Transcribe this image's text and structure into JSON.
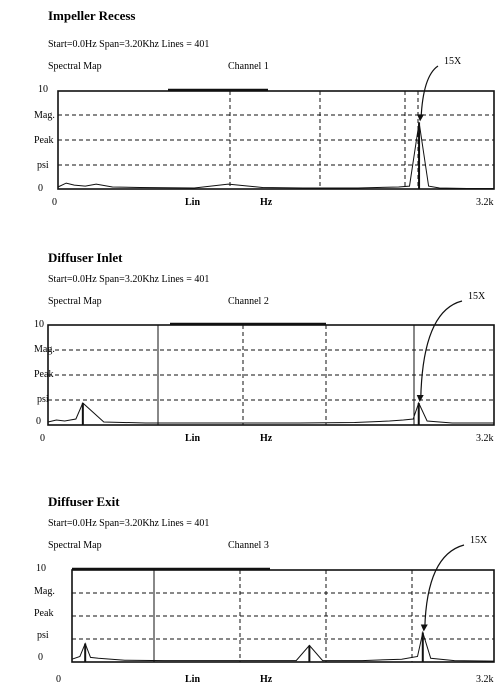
{
  "panels": [
    {
      "title": "Impeller Recess",
      "params": "Start=0.0Hz Span=3.20Khz Lines = 401",
      "map_label": "Spectral Map",
      "channel": "Channel 1",
      "y_top": "10",
      "y_zero": "0",
      "ylabel": [
        "Mag.",
        "Peak",
        "psi"
      ],
      "x_start": "0",
      "x_mid": "Lin",
      "x_unit": "Hz",
      "x_end": "3.2k",
      "annotation": "15X"
    },
    {
      "title": "Diffuser Inlet",
      "params": "Start=0.0Hz Span=3.20Khz Lines = 401",
      "map_label": "Spectral Map",
      "channel": "Channel 2",
      "y_top": "10",
      "y_zero": "0",
      "ylabel": [
        "Mag.",
        "Peak",
        "psi"
      ],
      "x_start": "0",
      "x_mid": "Lin",
      "x_unit": "Hz",
      "x_end": "3.2k",
      "annotation": "15X"
    },
    {
      "title": "Diffuser Exit",
      "params": "Start=0.0Hz Span=3.20Khz Lines = 401",
      "map_label": "Spectral Map",
      "channel": "Channel 3",
      "y_top": "10",
      "y_zero": "0",
      "ylabel": [
        "Mag.",
        "Peak",
        "psi"
      ],
      "x_start": "0",
      "x_mid": "Lin",
      "x_unit": "Hz",
      "x_end": "3.2k",
      "annotation": "15X"
    }
  ],
  "chart_data": [
    {
      "type": "line",
      "title": "Impeller Recess",
      "subtitle": "Start=0.0Hz Span=3.20Khz Lines = 401",
      "xlabel": "Hz",
      "ylabel": "Mag. Peak psi",
      "xlim": [
        0,
        3200
      ],
      "ylim": [
        0,
        10
      ],
      "grid": true,
      "series": [
        {
          "x": [
            0,
            60,
            120,
            200,
            280,
            400,
            600,
            1000,
            1250,
            1500,
            1800,
            2200,
            2500,
            2580,
            2650,
            2720,
            2800,
            3000,
            3200
          ],
          "y": [
            0.2,
            0.6,
            0.4,
            0.3,
            0.5,
            0.2,
            0.15,
            0.1,
            0.5,
            0.15,
            0.1,
            0.1,
            0.2,
            0.3,
            6.8,
            0.3,
            0.1,
            0.05,
            0.05
          ]
        }
      ],
      "annotations": [
        {
          "text": "15X",
          "x": 2650,
          "y": 6.8
        }
      ]
    },
    {
      "type": "line",
      "title": "Diffuser Inlet",
      "subtitle": "Start=0.0Hz Span=3.20Khz Lines = 401",
      "xlabel": "Hz",
      "ylabel": "Mag. Peak psi",
      "xlim": [
        0,
        3200
      ],
      "ylim": [
        0,
        10
      ],
      "grid": true,
      "series": [
        {
          "x": [
            0,
            60,
            120,
            200,
            250,
            400,
            700,
            1000,
            1400,
            1800,
            2200,
            2450,
            2550,
            2620,
            2660,
            2720,
            2900,
            3200
          ],
          "y": [
            0.3,
            0.5,
            0.4,
            0.6,
            2.2,
            0.3,
            0.2,
            0.2,
            0.2,
            0.2,
            0.25,
            0.4,
            0.5,
            0.6,
            2.2,
            0.4,
            0.2,
            0.2
          ]
        }
      ],
      "annotations": [
        {
          "text": "15X",
          "x": 2660,
          "y": 2.2
        }
      ]
    },
    {
      "type": "line",
      "title": "Diffuser Exit",
      "subtitle": "Start=0.0Hz Span=3.20Khz Lines = 401",
      "xlabel": "Hz",
      "ylabel": "Mag. Peak psi",
      "xlim": [
        0,
        3200
      ],
      "ylim": [
        0,
        10
      ],
      "grid": true,
      "series": [
        {
          "x": [
            0,
            60,
            100,
            140,
            200,
            400,
            700,
            1000,
            1400,
            1700,
            1800,
            1900,
            2200,
            2500,
            2620,
            2660,
            2720,
            2900,
            3200
          ],
          "y": [
            0.3,
            0.6,
            2.0,
            0.5,
            0.4,
            0.2,
            0.15,
            0.15,
            0.15,
            0.15,
            1.8,
            0.15,
            0.15,
            0.3,
            0.6,
            3.2,
            0.4,
            0.15,
            0.1
          ]
        }
      ],
      "annotations": [
        {
          "text": "15X",
          "x": 2660,
          "y": 3.2
        }
      ]
    }
  ]
}
